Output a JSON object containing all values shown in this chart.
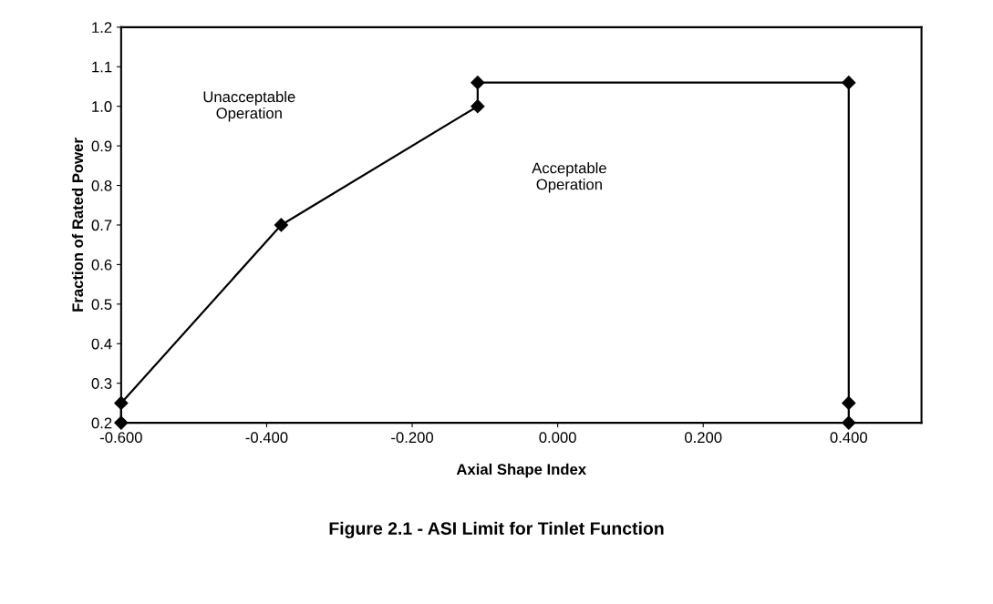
{
  "chart_data": {
    "type": "line",
    "title": "Figure 2.1 - ASI Limit for Tinlet Function",
    "xlabel": "Axial Shape Index",
    "ylabel": "Fraction of Rated Power",
    "x": [
      -0.6,
      -0.6,
      -0.38,
      -0.11,
      -0.11,
      0.4,
      0.4,
      0.4
    ],
    "series": [
      {
        "color": "#000000",
        "values": [
          0.2,
          0.25,
          0.7,
          1.0,
          1.06,
          1.06,
          0.25,
          0.2
        ]
      }
    ],
    "xlim": [
      -0.6,
      0.5
    ],
    "xticks": [
      {
        "value": -0.6,
        "label": "-0.600"
      },
      {
        "value": -0.4,
        "label": "-0.400"
      },
      {
        "value": -0.2,
        "label": "-0.200"
      },
      {
        "value": 0.0,
        "label": "0.000"
      },
      {
        "value": 0.2,
        "label": "0.200"
      },
      {
        "value": 0.4,
        "label": "0.400"
      }
    ],
    "ylim": [
      0.2,
      1.2
    ],
    "yticks": [
      {
        "value": 0.2,
        "label": "0.2"
      },
      {
        "value": 0.3,
        "label": "0.3"
      },
      {
        "value": 0.4,
        "label": "0.4"
      },
      {
        "value": 0.5,
        "label": "0.5"
      },
      {
        "value": 0.6,
        "label": "0.6"
      },
      {
        "value": 0.7,
        "label": "0.7"
      },
      {
        "value": 0.8,
        "label": "0.8"
      },
      {
        "value": 0.9,
        "label": "0.9"
      },
      {
        "value": 1.0,
        "label": "1.0"
      },
      {
        "value": 1.1,
        "label": "1.1"
      },
      {
        "value": 1.2,
        "label": "1.2"
      }
    ],
    "marker": "diamond",
    "line_style": "solid",
    "grid": false,
    "annotations": [
      "Unacceptable\nOperation",
      "Acceptable\nOperation"
    ]
  }
}
